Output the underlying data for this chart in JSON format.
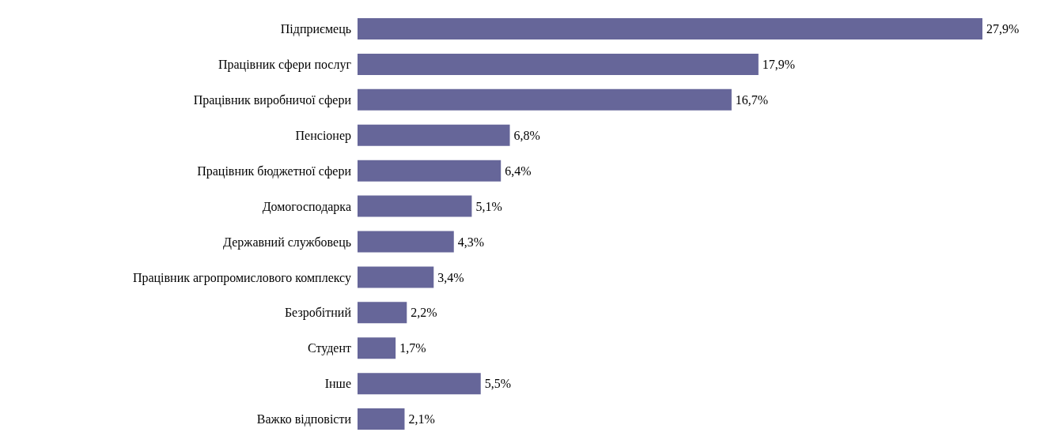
{
  "chart_data": {
    "type": "bar",
    "orientation": "horizontal",
    "categories": [
      "Підприємець",
      "Працівник сфери послуг",
      "Працівник виробничої сфери",
      "Пенсіонер",
      "Працівник бюджетної сфери",
      "Домогосподарка",
      "Державний службовець",
      "Працівник агропромислового комплексу",
      "Безробітний",
      "Студент",
      "Інше",
      "Важко відповісти"
    ],
    "values": [
      27.9,
      17.9,
      16.7,
      6.8,
      6.4,
      5.1,
      4.3,
      3.4,
      2.2,
      1.7,
      5.5,
      2.1
    ],
    "value_labels": [
      "27,9%",
      "17,9%",
      "16,7%",
      "6,8%",
      "6,4%",
      "5,1%",
      "4,3%",
      "3,4%",
      "2,2%",
      "1,7%",
      "5,5%",
      "2,1%"
    ],
    "color": "#666699",
    "grid": false,
    "legend": false
  }
}
